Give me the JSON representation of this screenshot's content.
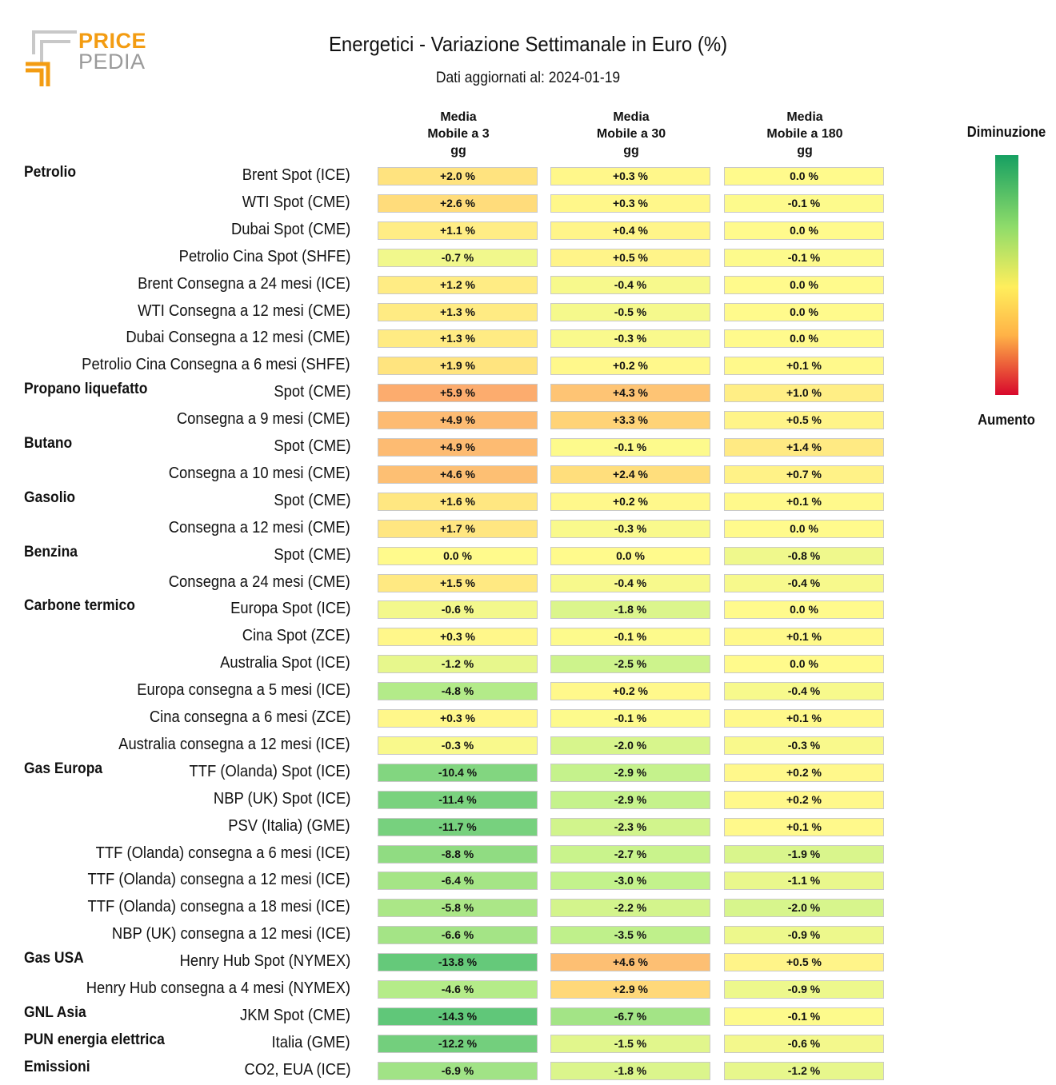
{
  "header": {
    "logo_price": "PRICE",
    "logo_pedia": "PEDIA",
    "title": "Energetici - Variazione Settimanale in Euro (%)",
    "subtitle": "Dati aggiornati al: 2024-01-19"
  },
  "columns": [
    [
      "Media",
      "Mobile a 3",
      "gg"
    ],
    [
      "Media",
      "Mobile a 30",
      "gg"
    ],
    [
      "Media",
      "Mobile a 180",
      "gg"
    ]
  ],
  "legend": {
    "top_label": "Diminuzione",
    "bottom_label": "Aumento"
  },
  "colors": {
    "min_green": "#16a062",
    "neutral": "#ffee5c",
    "max_red": "#d8082c"
  },
  "chart_data": {
    "type": "table",
    "title": "Energetici - Variazione Settimanale in Euro (%)",
    "color_scale": "green = diminuzione, yellow = 0, red = aumento",
    "rows": [
      {
        "category": "Petrolio",
        "label": "Brent Spot (ICE)",
        "values": [
          2.0,
          0.3,
          0.0
        ],
        "texts": [
          "+2.0 %",
          "+0.3 %",
          "0.0 %"
        ]
      },
      {
        "category": "",
        "label": "WTI Spot (CME)",
        "values": [
          2.6,
          0.3,
          -0.1
        ],
        "texts": [
          "+2.6 %",
          "+0.3 %",
          "-0.1 %"
        ]
      },
      {
        "category": "",
        "label": "Dubai Spot (CME)",
        "values": [
          1.1,
          0.4,
          0.0
        ],
        "texts": [
          "+1.1 %",
          "+0.4 %",
          "0.0 %"
        ]
      },
      {
        "category": "",
        "label": "Petrolio Cina Spot (SHFE)",
        "values": [
          -0.7,
          0.5,
          -0.1
        ],
        "texts": [
          "-0.7 %",
          "+0.5 %",
          "-0.1 %"
        ]
      },
      {
        "category": "",
        "label": "Brent Consegna a 24 mesi (ICE)",
        "values": [
          1.2,
          -0.4,
          0.0
        ],
        "texts": [
          "+1.2 %",
          "-0.4 %",
          "0.0 %"
        ]
      },
      {
        "category": "",
        "label": "WTI Consegna a 12 mesi (CME)",
        "values": [
          1.3,
          -0.5,
          0.0
        ],
        "texts": [
          "+1.3 %",
          "-0.5 %",
          "0.0 %"
        ]
      },
      {
        "category": "",
        "label": "Dubai Consegna a 12 mesi (CME)",
        "values": [
          1.3,
          -0.3,
          0.0
        ],
        "texts": [
          "+1.3 %",
          "-0.3 %",
          "0.0 %"
        ]
      },
      {
        "category": "",
        "label": "Petrolio Cina Consegna a 6 mesi (SHFE)",
        "values": [
          1.9,
          0.2,
          0.1
        ],
        "texts": [
          "+1.9 %",
          "+0.2 %",
          "+0.1 %"
        ]
      },
      {
        "category": "Propano liquefatto",
        "label": "Spot (CME)",
        "values": [
          5.9,
          4.3,
          1.0
        ],
        "texts": [
          "+5.9 %",
          "+4.3 %",
          "+1.0 %"
        ]
      },
      {
        "category": "",
        "label": "Consegna a 9 mesi (CME)",
        "values": [
          4.9,
          3.3,
          0.5
        ],
        "texts": [
          "+4.9 %",
          "+3.3 %",
          "+0.5 %"
        ]
      },
      {
        "category": "Butano",
        "label": "Spot (CME)",
        "values": [
          4.9,
          -0.1,
          1.4
        ],
        "texts": [
          "+4.9 %",
          "-0.1 %",
          "+1.4 %"
        ]
      },
      {
        "category": "",
        "label": "Consegna a 10 mesi (CME)",
        "values": [
          4.6,
          2.4,
          0.7
        ],
        "texts": [
          "+4.6 %",
          "+2.4 %",
          "+0.7 %"
        ]
      },
      {
        "category": "Gasolio",
        "label": "Spot (CME)",
        "values": [
          1.6,
          0.2,
          0.1
        ],
        "texts": [
          "+1.6 %",
          "+0.2 %",
          "+0.1 %"
        ]
      },
      {
        "category": "",
        "label": "Consegna a 12 mesi (CME)",
        "values": [
          1.7,
          -0.3,
          0.0
        ],
        "texts": [
          "+1.7 %",
          "-0.3 %",
          "0.0 %"
        ]
      },
      {
        "category": "Benzina",
        "label": "Spot (CME)",
        "values": [
          0.0,
          0.0,
          -0.8
        ],
        "texts": [
          "0.0 %",
          "0.0 %",
          "-0.8 %"
        ]
      },
      {
        "category": "",
        "label": "Consegna a 24 mesi (CME)",
        "values": [
          1.5,
          -0.4,
          -0.4
        ],
        "texts": [
          "+1.5 %",
          "-0.4 %",
          "-0.4 %"
        ]
      },
      {
        "category": "Carbone termico",
        "label": "Europa Spot (ICE)",
        "values": [
          -0.6,
          -1.8,
          0.0
        ],
        "texts": [
          "-0.6 %",
          "-1.8 %",
          "0.0 %"
        ]
      },
      {
        "category": "",
        "label": "Cina Spot (ZCE)",
        "values": [
          0.3,
          -0.1,
          0.1
        ],
        "texts": [
          "+0.3 %",
          "-0.1 %",
          "+0.1 %"
        ]
      },
      {
        "category": "",
        "label": "Australia Spot (ICE)",
        "values": [
          -1.2,
          -2.5,
          0.0
        ],
        "texts": [
          "-1.2 %",
          "-2.5 %",
          "0.0 %"
        ]
      },
      {
        "category": "",
        "label": "Europa consegna a 5 mesi (ICE)",
        "values": [
          -4.8,
          0.2,
          -0.4
        ],
        "texts": [
          "-4.8 %",
          "+0.2 %",
          "-0.4 %"
        ]
      },
      {
        "category": "",
        "label": "Cina consegna a 6 mesi (ZCE)",
        "values": [
          0.3,
          -0.1,
          0.1
        ],
        "texts": [
          "+0.3 %",
          "-0.1 %",
          "+0.1 %"
        ]
      },
      {
        "category": "",
        "label": "Australia consegna a 12 mesi (ICE)",
        "values": [
          -0.3,
          -2.0,
          -0.3
        ],
        "texts": [
          "-0.3 %",
          "-2.0 %",
          "-0.3 %"
        ]
      },
      {
        "category": "Gas Europa",
        "label": "TTF (Olanda) Spot (ICE)",
        "values": [
          -10.4,
          -2.9,
          0.2
        ],
        "texts": [
          "-10.4 %",
          "-2.9 %",
          "+0.2 %"
        ]
      },
      {
        "category": "",
        "label": "NBP (UK) Spot (ICE)",
        "values": [
          -11.4,
          -2.9,
          0.2
        ],
        "texts": [
          "-11.4 %",
          "-2.9 %",
          "+0.2 %"
        ]
      },
      {
        "category": "",
        "label": "PSV (Italia) (GME)",
        "values": [
          -11.7,
          -2.3,
          0.1
        ],
        "texts": [
          "-11.7 %",
          "-2.3 %",
          "+0.1 %"
        ]
      },
      {
        "category": "",
        "label": "TTF (Olanda) consegna a 6 mesi (ICE)",
        "values": [
          -8.8,
          -2.7,
          -1.9
        ],
        "texts": [
          "-8.8 %",
          "-2.7 %",
          "-1.9 %"
        ]
      },
      {
        "category": "",
        "label": "TTF (Olanda) consegna a 12 mesi (ICE)",
        "values": [
          -6.4,
          -3.0,
          -1.1
        ],
        "texts": [
          "-6.4 %",
          "-3.0 %",
          "-1.1 %"
        ]
      },
      {
        "category": "",
        "label": "TTF (Olanda) consegna a 18 mesi (ICE)",
        "values": [
          -5.8,
          -2.2,
          -2.0
        ],
        "texts": [
          "-5.8 %",
          "-2.2 %",
          "-2.0 %"
        ]
      },
      {
        "category": "",
        "label": "NBP (UK) consegna a 12 mesi (ICE)",
        "values": [
          -6.6,
          -3.5,
          -0.9
        ],
        "texts": [
          "-6.6 %",
          "-3.5 %",
          "-0.9 %"
        ]
      },
      {
        "category": "Gas USA",
        "label": "Henry Hub Spot (NYMEX)",
        "values": [
          -13.8,
          4.6,
          0.5
        ],
        "texts": [
          "-13.8 %",
          "+4.6 %",
          "+0.5 %"
        ]
      },
      {
        "category": "",
        "label": "Henry Hub consegna a 4 mesi (NYMEX)",
        "values": [
          -4.6,
          2.9,
          -0.9
        ],
        "texts": [
          "-4.6 %",
          "+2.9 %",
          "-0.9 %"
        ]
      },
      {
        "category": "GNL Asia",
        "label": "JKM Spot (CME)",
        "values": [
          -14.3,
          -6.7,
          -0.1
        ],
        "texts": [
          "-14.3 %",
          "-6.7 %",
          "-0.1 %"
        ]
      },
      {
        "category": "PUN energia elettrica",
        "label": "Italia (GME)",
        "values": [
          -12.2,
          -1.5,
          -0.6
        ],
        "texts": [
          "-12.2 %",
          "-1.5 %",
          "-0.6 %"
        ]
      },
      {
        "category": "Emissioni",
        "label": "CO2, EUA (ICE)",
        "values": [
          -6.9,
          -1.8,
          -1.2
        ],
        "texts": [
          "-6.9 %",
          "-1.8 %",
          "-1.2 %"
        ]
      }
    ]
  }
}
